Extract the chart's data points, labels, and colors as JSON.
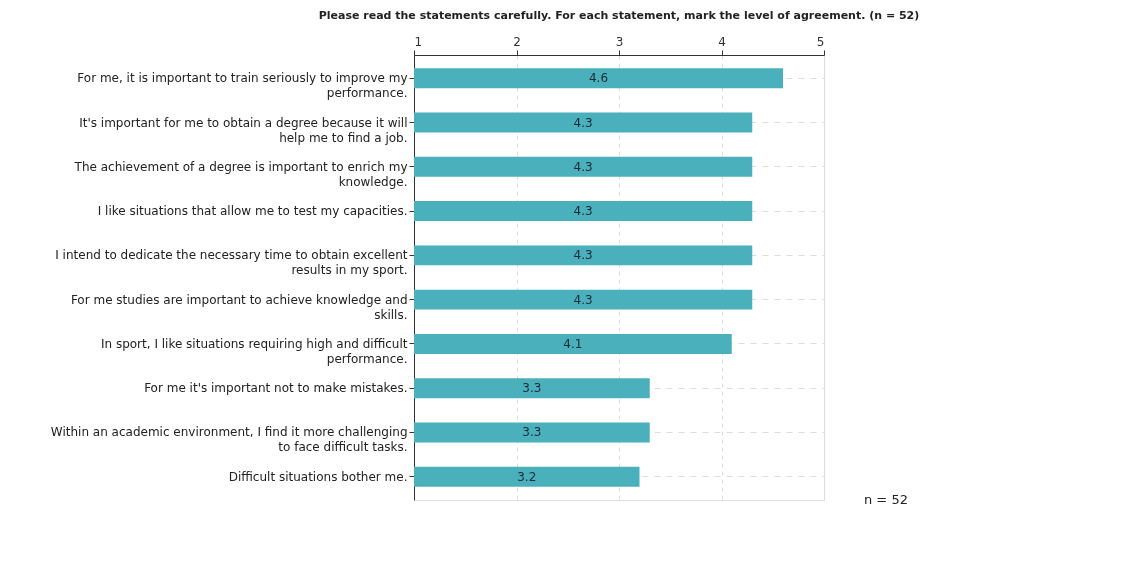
{
  "chart_data": {
    "type": "bar",
    "orientation": "horizontal",
    "title": "Please read the statements carefully. For each statement, mark the level of agreement. (n = 52)",
    "categories": [
      "For me, it is important to train seriously to improve my performance.",
      "It's important for me to obtain a degree because it will help me to find a job.",
      "The achievement of a degree is important to enrich my knowledge.",
      "I like situations that allow me to test my capacities.",
      "I intend to dedicate the necessary time to obtain excellent results in my sport.",
      "For me studies are important to achieve knowledge and skills.",
      "In sport, I like situations requiring high and difficult performance.",
      "For me it's important not to make mistakes.",
      "Within an academic environment, I find it more challenging to face difficult tasks.",
      "Difficult situations bother me."
    ],
    "values": [
      4.6,
      4.3,
      4.3,
      4.3,
      4.3,
      4.3,
      4.1,
      3.3,
      3.3,
      3.2
    ],
    "color": "#4ab0bc",
    "data_labels": true,
    "xlim": [
      1,
      5
    ],
    "xticks": [
      1,
      2,
      3,
      4,
      5
    ],
    "grid": true,
    "annotations": [
      "n = 52"
    ]
  }
}
